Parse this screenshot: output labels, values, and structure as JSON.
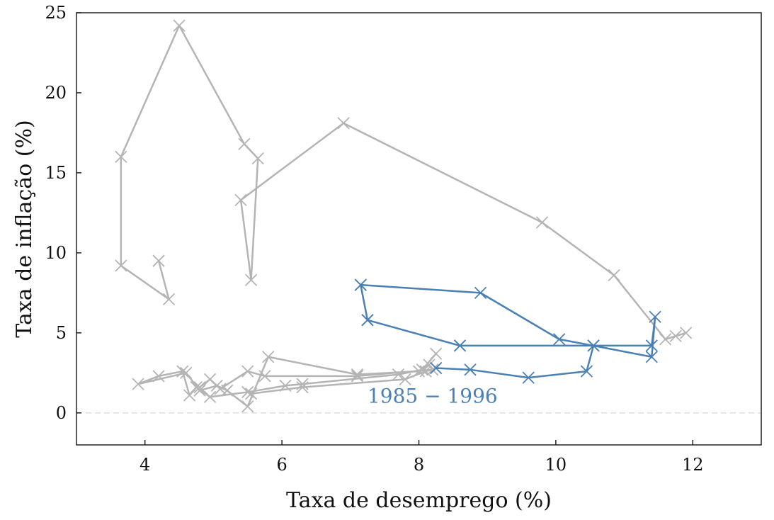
{
  "chart_data": {
    "type": "line",
    "xlabel": "Taxa de desemprego (%)",
    "ylabel": "Taxa de inflação (%)",
    "xlim": [
      3,
      13
    ],
    "ylim": [
      -2,
      25
    ],
    "xticks": [
      4,
      6,
      8,
      10,
      12
    ],
    "yticks": [
      0,
      5,
      10,
      15,
      20,
      25
    ],
    "grid": false,
    "legend": "none",
    "zero_line": {
      "y": 0,
      "style": "dashed",
      "color": "#dddddd"
    },
    "colors": {
      "background_series": "#b4b4b4",
      "highlight": "#4a80b4"
    },
    "series": [
      {
        "color": "#b4b4b4",
        "marker": "x",
        "x": [
          4.2,
          4.35,
          3.65,
          3.65,
          4.5,
          5.45,
          5.65,
          5.55,
          5.4,
          6.9,
          9.8,
          10.85,
          11.6,
          11.9,
          11.75
        ],
        "y": [
          9.5,
          7.1,
          9.2,
          16.0,
          24.2,
          16.8,
          15.9,
          8.3,
          13.3,
          18.1,
          11.9,
          8.6,
          4.6,
          5.0,
          4.8
        ]
      },
      {
        "color": "#b4b4b4",
        "marker": "x",
        "x": [
          8.25,
          8.05,
          7.7,
          6.3,
          6.05,
          5.5,
          4.95,
          4.75,
          4.65,
          4.55,
          4.2,
          3.9,
          4.6,
          4.8,
          5.05,
          5.2,
          5.5,
          5.8,
          7.1,
          8.0,
          8.15
        ],
        "y": [
          3.7,
          2.7,
          2.4,
          1.8,
          1.7,
          1.3,
          1.0,
          1.6,
          1.1,
          2.6,
          2.3,
          1.8,
          2.5,
          1.4,
          1.7,
          1.4,
          0.4,
          3.5,
          2.4,
          2.6,
          3.0
        ]
      },
      {
        "color": "#b4b4b4",
        "marker": "x",
        "x": [
          4.8,
          4.95,
          5.1,
          5.5,
          5.75,
          7.1,
          8.2,
          8.1,
          7.8,
          6.3,
          5.55
        ],
        "y": [
          1.6,
          2.1,
          1.5,
          2.6,
          2.3,
          2.3,
          2.7,
          2.6,
          2.1,
          1.6,
          1.2
        ]
      },
      {
        "color": "#4a80b4",
        "marker": "x",
        "x": [
          7.15,
          8.9,
          10.05,
          10.55,
          11.4,
          11.45,
          11.4,
          8.6,
          7.25,
          7.15,
          7.25,
          8.6,
          10.55,
          10.45,
          9.6,
          8.75,
          8.25
        ],
        "y": [
          8.0,
          7.5,
          4.6,
          4.2,
          3.5,
          6.0,
          4.2,
          4.2,
          5.8,
          8.0,
          5.8,
          4.2,
          4.2,
          2.6,
          2.2,
          2.7,
          2.8
        ]
      }
    ],
    "annotations": [
      {
        "text": "1985 − 1996",
        "x": 8.2,
        "y": 0.8,
        "color": "#4a80b4"
      }
    ]
  }
}
